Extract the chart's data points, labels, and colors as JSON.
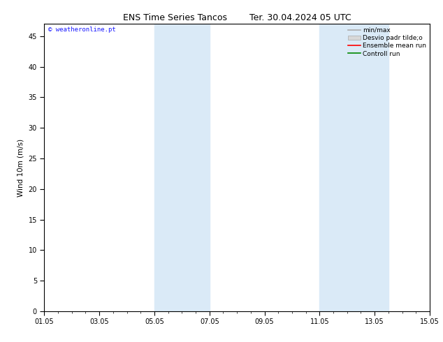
{
  "title": "ENS Time Series Tancos        Ter. 30.04.2024 05 UTC",
  "ylabel": "Wind 10m (m/s)",
  "watermark": "© weatheronline.pt",
  "watermark_color": "#1a1aff",
  "xlim": [
    0,
    14
  ],
  "ylim": [
    0,
    47
  ],
  "yticks": [
    0,
    5,
    10,
    15,
    20,
    25,
    30,
    35,
    40,
    45
  ],
  "xtick_positions": [
    0,
    2,
    4,
    6,
    8,
    10,
    12,
    14
  ],
  "xtick_labels": [
    "01.05",
    "03.05",
    "05.05",
    "07.05",
    "09.05",
    "11.05",
    "13.05",
    "15.05"
  ],
  "bg_color": "#ffffff",
  "plot_bg_color": "#ffffff",
  "shaded_bands": [
    {
      "xmin": 4.0,
      "xmax": 6.0,
      "color": "#daeaf7"
    },
    {
      "xmin": 10.0,
      "xmax": 12.5,
      "color": "#daeaf7"
    }
  ],
  "legend_entries": [
    {
      "label": "min/max",
      "color": "#aaaaaa",
      "lw": 1.2,
      "type": "line"
    },
    {
      "label": "Desvio padr tilde;o",
      "color": "#cccccc",
      "lw": 5,
      "type": "bar"
    },
    {
      "label": "Ensemble mean run",
      "color": "#ff0000",
      "lw": 1.2,
      "type": "line"
    },
    {
      "label": "Controll run",
      "color": "#008800",
      "lw": 1.2,
      "type": "line"
    }
  ],
  "title_fontsize": 9,
  "axis_fontsize": 7.5,
  "tick_fontsize": 7,
  "legend_fontsize": 6.5
}
